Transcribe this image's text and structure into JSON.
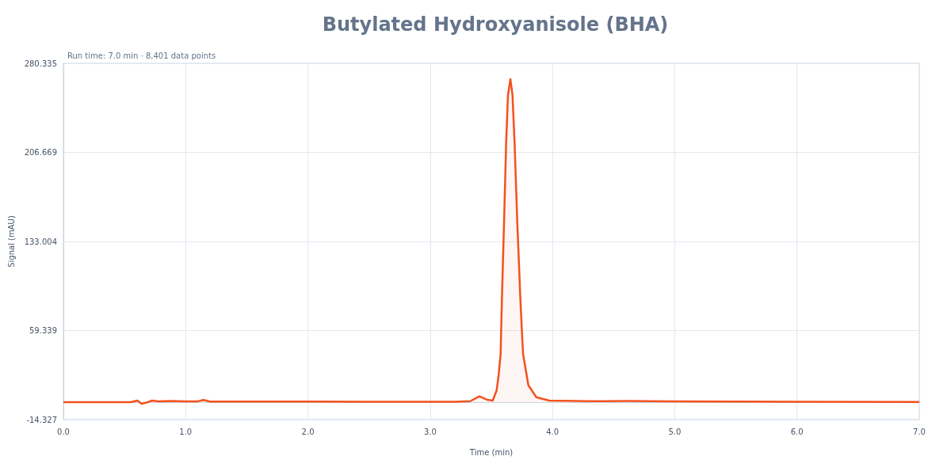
{
  "chart_data": {
    "type": "area",
    "title": "Butylated Hydroxyanisole (BHA)",
    "subtitle": "Run time: 7.0 min · 8,401 data points",
    "xlabel": "Time (min)",
    "ylabel": "Signal (mAU)",
    "series": [
      {
        "color": "#f4511e",
        "x": [
          0,
          0.3,
          0.55,
          0.605,
          0.639,
          0.68,
          0.724,
          0.778,
          0.875,
          1.0,
          1.102,
          1.145,
          1.199,
          1.5,
          2.0,
          2.5,
          3.0,
          3.2,
          3.327,
          3.403,
          3.468,
          3.511,
          3.543,
          3.56,
          3.576,
          3.586,
          3.604,
          3.621,
          3.636,
          3.656,
          3.673,
          3.69,
          3.712,
          3.738,
          3.759,
          3.803,
          3.868,
          3.973,
          4.3,
          4.6,
          5.0,
          6.0,
          7.0
        ],
        "values": [
          0.1,
          0.1,
          0.1,
          1.4,
          -1.2,
          -0.3,
          1.4,
          0.8,
          1.0,
          0.8,
          0.8,
          1.9,
          0.6,
          0.5,
          0.6,
          0.4,
          0.4,
          0.4,
          0.9,
          4.9,
          2.0,
          1.4,
          9.7,
          22.8,
          40.2,
          83.9,
          149.4,
          214.9,
          254.1,
          267.2,
          254.1,
          214.9,
          149.4,
          83.9,
          40.2,
          14.0,
          4.2,
          1.4,
          0.9,
          1.0,
          0.7,
          0.4,
          0.3
        ]
      }
    ],
    "xlim": [
      0,
      7
    ],
    "xticks": [
      {
        "value": 0,
        "label": "0.0"
      },
      {
        "value": 1,
        "label": "1.0"
      },
      {
        "value": 2,
        "label": "2.0"
      },
      {
        "value": 3,
        "label": "3.0"
      },
      {
        "value": 4,
        "label": "4.0"
      },
      {
        "value": 5,
        "label": "5.0"
      },
      {
        "value": 6,
        "label": "6.0"
      },
      {
        "value": 7,
        "label": "7.0"
      }
    ],
    "ylim": [
      -14.327,
      280.335
    ],
    "yticks": [
      -14.327,
      59.339,
      133.004,
      206.669,
      280.335
    ],
    "grid": true,
    "marker": "none",
    "line_style": "solid"
  }
}
